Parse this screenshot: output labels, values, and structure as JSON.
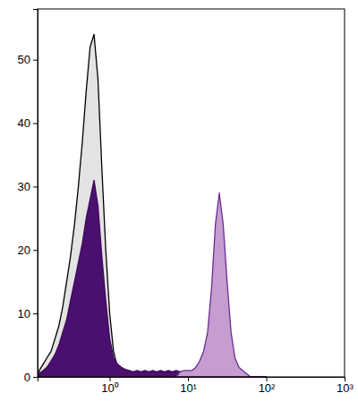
{
  "chart_data": {
    "type": "area",
    "log": "x",
    "x": [
      0.126,
      0.141,
      0.158,
      0.178,
      0.2,
      0.224,
      0.251,
      0.282,
      0.316,
      0.355,
      0.398,
      0.447,
      0.501,
      0.562,
      0.631,
      0.708,
      0.794,
      0.891,
      1,
      1.12,
      1.26,
      1.41,
      1.58,
      1.78,
      2,
      2.24,
      2.51,
      2.82,
      3.16,
      3.55,
      3.98,
      4.47,
      5.01,
      5.62,
      6.31,
      7.08,
      7.94,
      8.91,
      10,
      11.2,
      12.6,
      14.1,
      15.8,
      17.8,
      20,
      22.4,
      25.1,
      28.2,
      31.6,
      35.5,
      39.8,
      44.7,
      50.1,
      56.2,
      63.1,
      70.8,
      79.4,
      89.1,
      100
    ],
    "series": [
      {
        "color": "#e3e3e3",
        "values": [
          1,
          2,
          3,
          4,
          6,
          8,
          11,
          15,
          19,
          24,
          30,
          37,
          45,
          52,
          54,
          47,
          33,
          20,
          10,
          4,
          1.5,
          0.5,
          0,
          0,
          0,
          0,
          0,
          0,
          0,
          0,
          0,
          0,
          0,
          0,
          0,
          0,
          0,
          0,
          0,
          0,
          0,
          0,
          0,
          0,
          0,
          0,
          0,
          0,
          0,
          0,
          0,
          0,
          0,
          0,
          0,
          0,
          0,
          0,
          0
        ]
      },
      {
        "color": "#4b0f6f",
        "values": [
          0.5,
          1,
          1.5,
          2.5,
          3.5,
          5,
          7,
          9,
          12,
          15,
          18,
          21,
          25,
          28,
          31,
          27,
          19,
          12,
          6,
          3,
          2,
          1.5,
          1.2,
          1,
          0.8,
          1,
          0.8,
          1,
          0.8,
          1,
          0.8,
          1,
          0.8,
          1,
          0.8,
          1,
          0.8,
          0.8,
          0,
          0,
          0,
          0,
          0,
          0,
          0,
          0,
          0,
          0,
          0,
          0,
          0,
          0,
          0,
          0,
          0,
          0,
          0,
          0,
          0
        ]
      },
      {
        "color": "#c59dd1",
        "values": [
          0,
          0,
          0,
          0,
          0,
          0,
          0,
          0,
          0,
          0,
          0,
          0,
          0,
          0,
          0,
          0,
          0,
          0,
          0,
          0,
          0,
          0,
          0,
          0,
          0,
          0,
          0,
          0,
          0,
          0,
          0,
          0,
          0,
          0,
          0,
          0,
          0.8,
          1,
          1,
          1,
          1.5,
          2.5,
          4,
          7,
          14,
          24,
          29,
          24,
          15,
          7,
          3,
          1.5,
          1,
          0.5,
          0,
          0,
          0,
          0,
          0
        ]
      }
    ],
    "xlim": [
      0.12,
      1000
    ],
    "xticks": [
      {
        "value": 1,
        "label": "10⁰"
      },
      {
        "value": 10,
        "label": "10¹"
      },
      {
        "value": 100,
        "label": "10²"
      },
      {
        "value": 1000,
        "label": "10³"
      }
    ],
    "ylim": [
      0,
      58
    ],
    "yticks": [
      0,
      10,
      20,
      30,
      40,
      50
    ],
    "grid": false
  }
}
